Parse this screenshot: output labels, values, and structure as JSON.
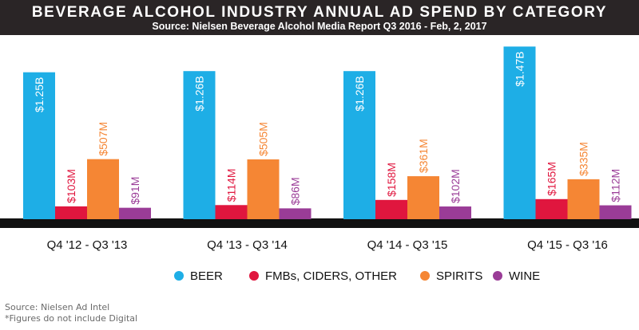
{
  "header": {
    "title": "BEVERAGE ALCOHOL INDUSTRY ANNUAL AD SPEND BY CATEGORY",
    "subtitle": "Source: Nielsen Beverage Alcohol Media Report Q3 2016 - Feb, 2, 2017"
  },
  "chart_data": {
    "type": "bar",
    "categories": [
      "Q4 '12 - Q3 '13",
      "Q4 '13 - Q3 '14",
      "Q4 '14 - Q3 '15",
      "Q4 '15 - Q3 '16"
    ],
    "series": [
      {
        "name": "BEER",
        "color": "#1eaee6",
        "values": [
          1250,
          1260,
          1260,
          1470
        ],
        "labels": [
          "$1.25B",
          "$1.26B",
          "$1.26B",
          "$1.47B"
        ]
      },
      {
        "name": "FMBs, CIDERS, OTHER",
        "color": "#e0163e",
        "values": [
          103,
          114,
          158,
          165
        ],
        "labels": [
          "$103M",
          "$114M",
          "$158M",
          "$165M"
        ]
      },
      {
        "name": "SPIRITS",
        "color": "#f58634",
        "values": [
          507,
          505,
          361,
          335
        ],
        "labels": [
          "$507M",
          "$505M",
          "$361M",
          "$335M"
        ]
      },
      {
        "name": "WINE",
        "color": "#9a3c97",
        "values": [
          91,
          86,
          102,
          112
        ],
        "labels": [
          "$91M",
          "$86M",
          "$102M",
          "$112M"
        ]
      }
    ],
    "unit": "millions USD",
    "ylim": [
      0,
      1500
    ],
    "grid": false,
    "legend_position": "bottom"
  },
  "footnotes": {
    "source": "Source: Nielsen Ad Intel",
    "note": "*Figures do not include Digital"
  }
}
